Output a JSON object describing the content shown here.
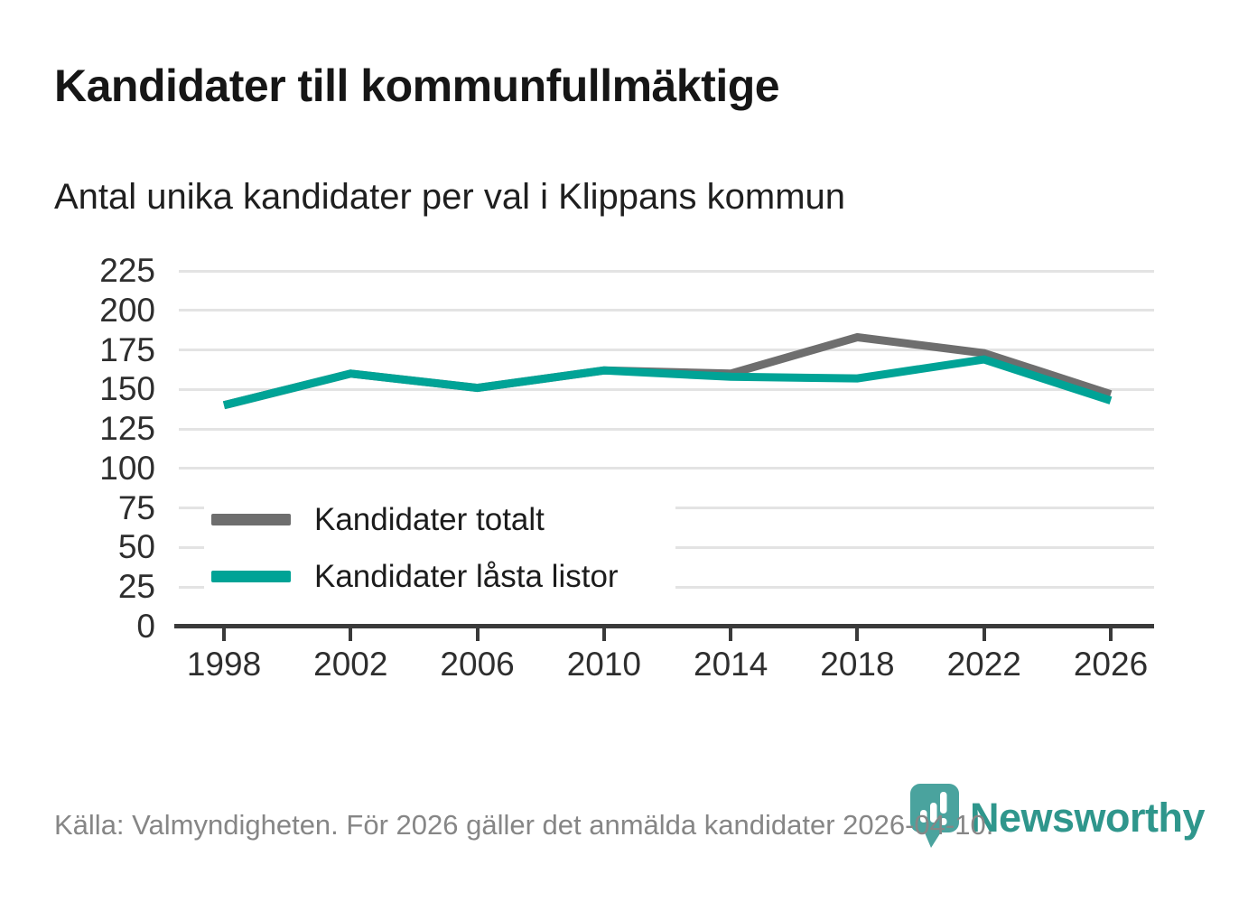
{
  "header": {
    "title": "Kandidater till kommunfullmäktige",
    "subtitle": "Antal unika kandidater per val i Klippans kommun"
  },
  "chart_data": {
    "type": "line",
    "title": "Kandidater till kommunfullmäktige",
    "subtitle": "Antal unika kandidater per val i Klippans kommun",
    "x": [
      1998,
      2002,
      2006,
      2010,
      2014,
      2018,
      2022,
      2026
    ],
    "series": [
      {
        "name": "Kandidater totalt",
        "color": "#6e6e6e",
        "values": [
          140,
          160,
          151,
          162,
          160,
          183,
          173,
          147
        ]
      },
      {
        "name": "Kandidater låsta listor",
        "color": "#00a396",
        "values": [
          140,
          160,
          151,
          162,
          158,
          157,
          169,
          143
        ]
      }
    ],
    "ylim": [
      0,
      225
    ],
    "yticks": [
      0,
      25,
      50,
      75,
      100,
      125,
      150,
      175,
      200,
      225
    ],
    "grid": true,
    "legend_position": "inside-bottom-left",
    "note": "Gray series is hidden behind the teal series 1998–2010 where values coincide"
  },
  "footer": {
    "source": "Källa: Valmyndigheten. För 2026 gäller det anmälda kandidater 2026-04-10.",
    "brand": "Newsworthy"
  },
  "colors": {
    "line_total": "#6e6e6e",
    "line_locked": "#00a396",
    "gridline": "#e3e3e3",
    "axis": "#3a3a3a",
    "brand_teal": "#2f968c",
    "logo_bubble": "#4aa39e",
    "source_text": "#868686"
  }
}
